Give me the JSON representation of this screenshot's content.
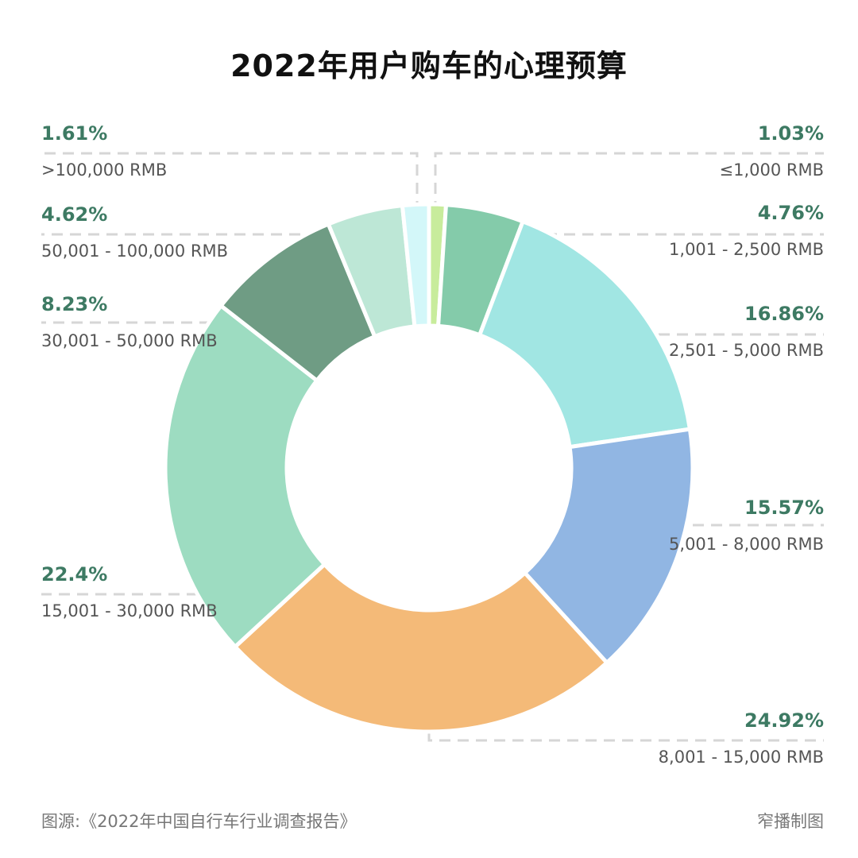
{
  "chart_data": {
    "type": "pie",
    "donut": true,
    "title": "2022年用户购车的心理预算",
    "categories": [
      "≤1,000 RMB",
      "1,001 - 2,500 RMB",
      "2,501 - 5,000 RMB",
      "5,001 - 8,000 RMB",
      "8,001 - 15,000 RMB",
      "15,001 - 30,000 RMB",
      "30,001 - 50,000 RMB",
      "50,001 - 100,000 RMB",
      ">100,000 RMB"
    ],
    "values": [
      1.03,
      4.76,
      16.86,
      15.57,
      24.92,
      22.4,
      8.23,
      4.62,
      1.61
    ],
    "labels": [
      "1.03%",
      "4.76%",
      "16.86%",
      "15.57%",
      "24.92%",
      "22.4%",
      "8.23%",
      "4.62%",
      "1.61%"
    ],
    "colors": [
      "#c8ec9c",
      "#84cbaa",
      "#a1e6e3",
      "#91b6e3",
      "#f4ba78",
      "#9ddcc1",
      "#6f9c84",
      "#bde7d6",
      "#d3f7f9"
    ],
    "start": "top",
    "direction": "clockwise"
  },
  "footer": {
    "source": "图源:《2022年中国自行车行业调查报告》",
    "credit": "窄播制图"
  }
}
